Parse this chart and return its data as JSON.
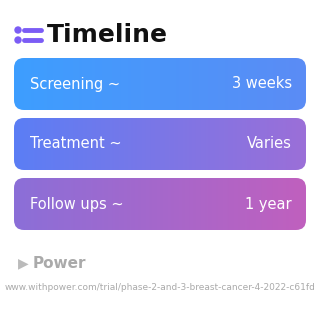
{
  "title": "Timeline",
  "title_fontsize": 18,
  "title_color": "#111111",
  "title_bold": true,
  "icon_color": "#7B5CF5",
  "background_color": "#ffffff",
  "rows": [
    {
      "label": "Screening ~",
      "value": "3 weeks",
      "color_left": "#3D9EFF",
      "color_right": "#5B8CF5"
    },
    {
      "label": "Treatment ~",
      "value": "Varies",
      "color_left": "#5B7EF5",
      "color_right": "#9B6FD8"
    },
    {
      "label": "Follow ups ~",
      "value": "1 year",
      "color_left": "#8B6FD8",
      "color_right": "#C060BE"
    }
  ],
  "footer_text": "Power",
  "footer_url": "www.withpower.com/trial/phase-2-and-3-breast-cancer-4-2022-c61fd",
  "footer_fontsize": 6.5,
  "footer_color": "#aaaaaa"
}
